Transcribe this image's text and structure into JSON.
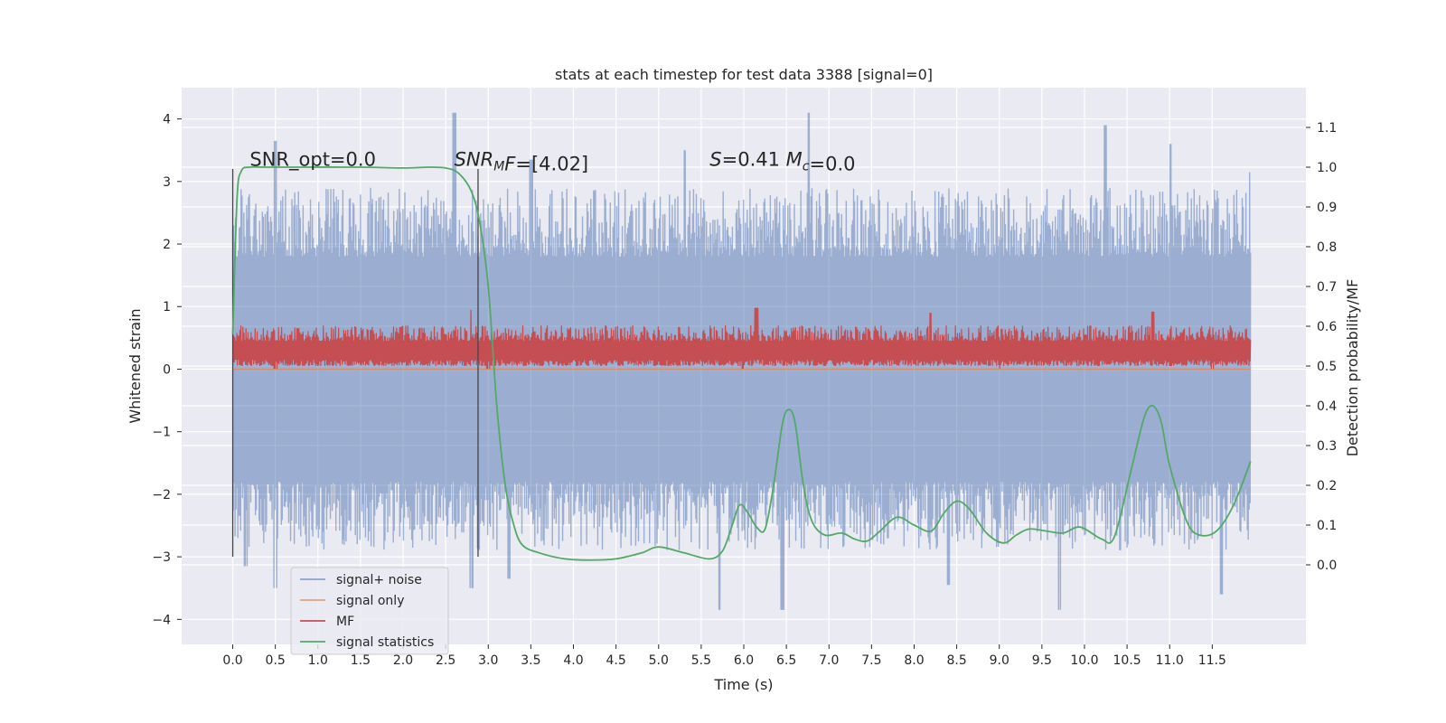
{
  "chart_data": {
    "type": "line",
    "title": "stats at each timestep for test data 3388 [signal=0]",
    "xlabel": "Time (s)",
    "ylabel": "Whitened strain",
    "ylabel_right": "Detection probability/MF",
    "xlim": [
      -0.6,
      12.6
    ],
    "ylim": [
      -4.4,
      4.5
    ],
    "ylim_right": [
      -0.2,
      1.2
    ],
    "x_ticks": [
      "0.0",
      "0.5",
      "1.0",
      "1.5",
      "2.0",
      "2.5",
      "3.0",
      "3.5",
      "4.0",
      "4.5",
      "5.0",
      "5.5",
      "6.0",
      "6.5",
      "7.0",
      "7.5",
      "8.0",
      "8.5",
      "9.0",
      "9.5",
      "10.0",
      "10.5",
      "11.0",
      "11.5"
    ],
    "y_ticks": [
      4,
      3,
      2,
      1,
      0,
      -1,
      -2,
      -3,
      -4
    ],
    "y_ticks_right": [
      "0.0",
      "0.1",
      "0.2",
      "0.3",
      "0.4",
      "0.5",
      "0.6",
      "0.7",
      "0.8",
      "0.9",
      "1.0",
      "1.1"
    ],
    "grid": true,
    "legend_position": "lower-left",
    "vlines": [
      {
        "x": 0.0,
        "y": [
          -3.0,
          3.2
        ]
      },
      {
        "x": 2.88,
        "y": [
          -3.0,
          3.2
        ]
      }
    ],
    "annotations": [
      {
        "text": "SNR_opt=0.0",
        "x": 0.2,
        "y": 3.25
      },
      {
        "text_parts": [
          {
            "t": "SNR",
            "i": true
          },
          {
            "t": "M",
            "i": true,
            "sub": true
          },
          {
            "t": "F",
            "i": true
          },
          {
            "t": "=[4.02]",
            "i": false
          }
        ],
        "x": 2.6,
        "y": 3.25
      },
      {
        "text_parts": [
          {
            "t": "S",
            "i": true
          },
          {
            "t": "=0.41  ",
            "i": false
          },
          {
            "t": "M",
            "i": true
          },
          {
            "t": "c",
            "i": true,
            "sub": true
          },
          {
            "t": "=0.0",
            "i": false
          }
        ],
        "x": 5.6,
        "y": 3.25
      }
    ],
    "series": [
      {
        "name": "signal+ noise",
        "color": "#4c72b0",
        "axis": "left",
        "style": "noise",
        "x_range": [
          0.0,
          11.95
        ],
        "envelope": {
          "upper_typical": [
            1.8,
            2.9
          ],
          "upper_peaks": [
            [
              0.5,
              3.65
            ],
            [
              2.6,
              4.1
            ],
            [
              3.5,
              3.35
            ],
            [
              5.3,
              3.5
            ],
            [
              6.75,
              4.1
            ],
            [
              10.25,
              3.9
            ],
            [
              11.0,
              3.6
            ],
            [
              11.95,
              3.15
            ]
          ],
          "lower_typical": [
            -1.8,
            -2.9
          ],
          "lower_peaks": [
            [
              0.15,
              -3.15
            ],
            [
              0.5,
              -3.5
            ],
            [
              2.8,
              -3.5
            ],
            [
              3.25,
              -3.35
            ],
            [
              5.7,
              -3.85
            ],
            [
              6.45,
              -3.85
            ],
            [
              8.4,
              -3.45
            ],
            [
              9.7,
              -3.85
            ],
            [
              11.6,
              -3.6
            ]
          ]
        }
      },
      {
        "name": "signal only",
        "color": "#dd8452",
        "axis": "left",
        "x": [
          0.0,
          11.95
        ],
        "y": [
          0.0,
          0.0
        ]
      },
      {
        "name": "MF",
        "color": "#c44e52",
        "axis": "left",
        "style": "noise",
        "x_range": [
          0.0,
          11.95
        ],
        "envelope": {
          "upper_typical": [
            0.45,
            0.7
          ],
          "upper_peaks": [
            [
              2.8,
              0.95
            ],
            [
              6.15,
              0.98
            ],
            [
              8.2,
              0.9
            ],
            [
              10.8,
              0.92
            ]
          ],
          "lower_typical": [
            0.05,
            0.15
          ],
          "lower_peaks": [
            [
              0.5,
              0.0
            ],
            [
              3.0,
              0.0
            ],
            [
              6.0,
              0.0
            ],
            [
              9.0,
              0.0
            ],
            [
              11.5,
              0.0
            ]
          ]
        }
      },
      {
        "name": "signal statistics",
        "color": "#55a868",
        "axis": "right",
        "x": [
          0.0,
          0.05,
          0.1,
          0.2,
          0.4,
          0.8,
          1.5,
          2.0,
          2.3,
          2.5,
          2.65,
          2.8,
          2.9,
          3.0,
          3.1,
          3.2,
          3.3,
          3.4,
          3.6,
          3.9,
          4.2,
          4.5,
          4.8,
          5.0,
          5.3,
          5.6,
          5.75,
          5.85,
          5.95,
          6.05,
          6.15,
          6.25,
          6.35,
          6.45,
          6.52,
          6.6,
          6.7,
          6.8,
          6.95,
          7.15,
          7.3,
          7.45,
          7.6,
          7.8,
          8.0,
          8.2,
          8.35,
          8.5,
          8.65,
          8.85,
          9.05,
          9.2,
          9.35,
          9.55,
          9.75,
          9.95,
          10.2,
          10.35,
          10.55,
          10.7,
          10.8,
          10.9,
          11.0,
          11.2,
          11.35,
          11.55,
          11.75,
          11.95
        ],
        "y": [
          0.58,
          0.92,
          0.99,
          1.0,
          1.0,
          1.0,
          1.0,
          0.998,
          1.0,
          0.998,
          0.985,
          0.94,
          0.86,
          0.7,
          0.4,
          0.2,
          0.1,
          0.05,
          0.03,
          0.015,
          0.012,
          0.015,
          0.03,
          0.045,
          0.03,
          0.015,
          0.035,
          0.09,
          0.15,
          0.13,
          0.095,
          0.09,
          0.2,
          0.35,
          0.39,
          0.36,
          0.2,
          0.11,
          0.075,
          0.08,
          0.065,
          0.06,
          0.085,
          0.12,
          0.1,
          0.085,
          0.13,
          0.16,
          0.14,
          0.08,
          0.055,
          0.075,
          0.09,
          0.085,
          0.08,
          0.095,
          0.065,
          0.07,
          0.24,
          0.37,
          0.4,
          0.36,
          0.25,
          0.11,
          0.075,
          0.085,
          0.15,
          0.26
        ]
      }
    ]
  }
}
